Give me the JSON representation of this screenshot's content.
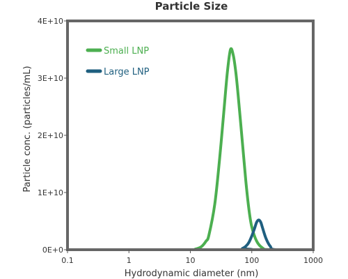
{
  "chart_data": {
    "type": "line",
    "title": "Particle Size",
    "xlabel": "Hydrodynamic diameter (nm)",
    "ylabel": "Particle conc. (particles/mL)",
    "xscale": "log",
    "xlim": [
      0.1,
      1000
    ],
    "ylim": [
      0,
      40000000000
    ],
    "x_ticks": [
      0.1,
      1,
      10,
      100,
      1000
    ],
    "x_tick_labels": [
      "0.1",
      "1",
      "10",
      "100",
      "1000"
    ],
    "y_ticks": [
      0,
      10000000000,
      20000000000,
      30000000000,
      40000000000
    ],
    "y_tick_labels": [
      "0E+0",
      "1E+10",
      "2E+10",
      "3E+10",
      "4E+10"
    ],
    "grid": false,
    "legend_position": "top-left",
    "series": [
      {
        "name": "Small LNP",
        "color": "#4caf50",
        "x": [
          0.1,
          10,
          12,
          15,
          18,
          20,
          25,
          30,
          35,
          40,
          45,
          50,
          55,
          60,
          70,
          80,
          90,
          100,
          120,
          150,
          200,
          1000
        ],
        "y": [
          0,
          0,
          100000000,
          500000000,
          1500000000,
          2500000000,
          8000000000,
          16000000000,
          24000000000,
          31000000000,
          35000000000,
          34000000000,
          31000000000,
          27000000000,
          19000000000,
          12000000000,
          7000000000,
          4000000000,
          1500000000,
          300000000,
          0,
          0
        ]
      },
      {
        "name": "Large LNP",
        "color": "#1f5f7f",
        "x": [
          0.1,
          60,
          70,
          80,
          90,
          100,
          110,
          120,
          130,
          140,
          150,
          170,
          200,
          250,
          1000
        ],
        "y": [
          0,
          0,
          200000000,
          600000000,
          1300000000,
          2400000000,
          3600000000,
          4800000000,
          5200000000,
          4800000000,
          3800000000,
          2000000000,
          600000000,
          0,
          0
        ]
      }
    ]
  }
}
